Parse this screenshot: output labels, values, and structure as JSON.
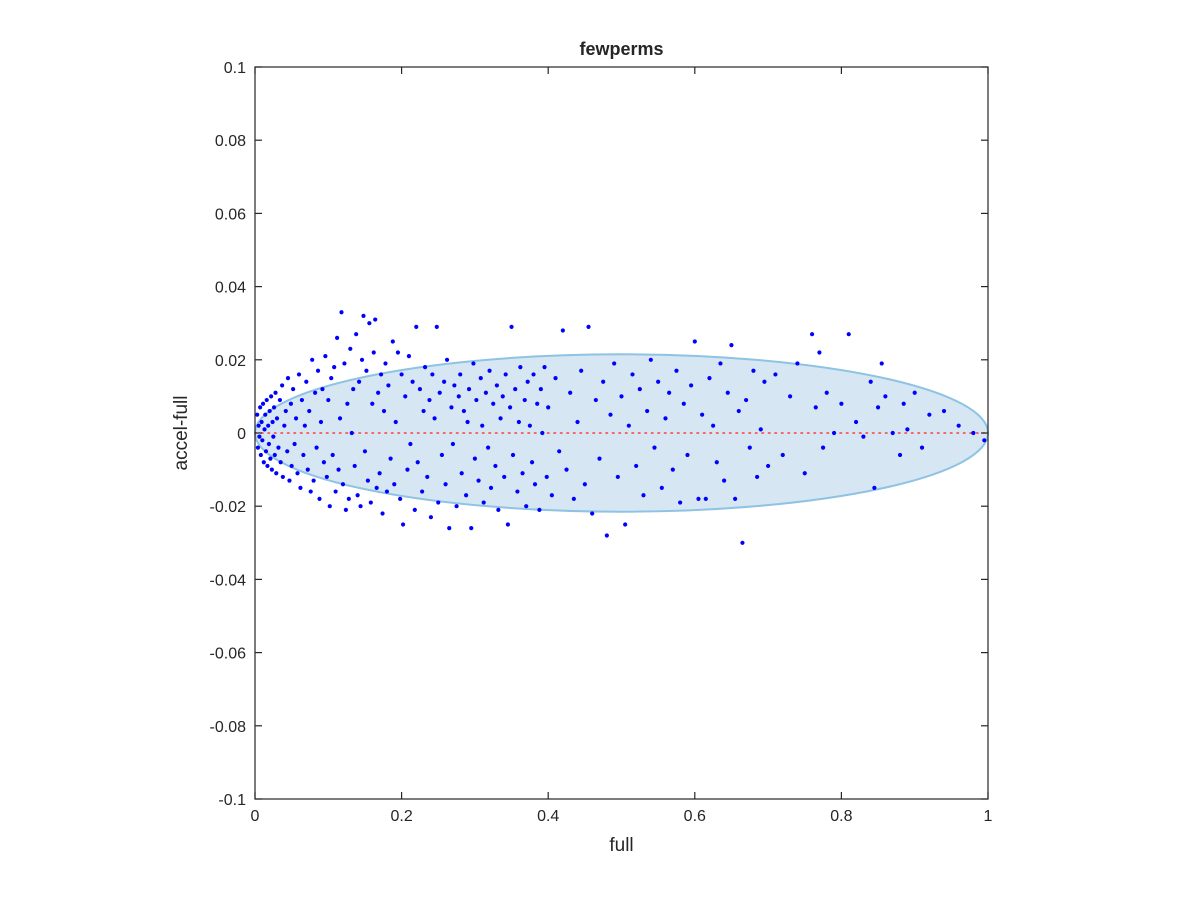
{
  "chart_data": {
    "type": "scatter",
    "title": "fewperms",
    "xlabel": "full",
    "ylabel": "accel-full",
    "xlim": [
      0,
      1
    ],
    "ylim": [
      -0.1,
      0.1
    ],
    "x_ticks": [
      0,
      0.2,
      0.4,
      0.6,
      0.8,
      1
    ],
    "y_ticks": [
      -0.1,
      -0.08,
      -0.06,
      -0.04,
      -0.02,
      0,
      0.02,
      0.04,
      0.06,
      0.08,
      0.1
    ],
    "x_tick_labels": [
      "0",
      "0.2",
      "0.4",
      "0.6",
      "0.8",
      "1"
    ],
    "y_tick_labels": [
      "-0.1",
      "-0.08",
      "-0.06",
      "-0.04",
      "-0.02",
      "0",
      "0.02",
      "0.04",
      "0.06",
      "0.08",
      "0.1"
    ],
    "grid": false,
    "ellipse": {
      "center": [
        0.5,
        0
      ],
      "semi_axis_x": 0.5,
      "semi_axis_y": 0.0215,
      "fill": "#d6e6f3",
      "edge": "#8ec3e3"
    },
    "reference_line": {
      "y": 0,
      "x_range": [
        0,
        1
      ],
      "color": "#ff3b3b",
      "style": "dotted"
    },
    "marker_color": "#0000ff",
    "points": [
      [
        0.003,
        0.005
      ],
      [
        0.004,
        -0.004
      ],
      [
        0.005,
        0.002
      ],
      [
        0.006,
        -0.001
      ],
      [
        0.007,
        0.007
      ],
      [
        0.008,
        -0.006
      ],
      [
        0.009,
        0.003
      ],
      [
        0.01,
        -0.002
      ],
      [
        0.011,
        0.008
      ],
      [
        0.012,
        -0.008
      ],
      [
        0.013,
        0.001
      ],
      [
        0.014,
        0.005
      ],
      [
        0.015,
        -0.005
      ],
      [
        0.016,
        0.009
      ],
      [
        0.017,
        -0.009
      ],
      [
        0.018,
        0.002
      ],
      [
        0.019,
        -0.003
      ],
      [
        0.02,
        0.006
      ],
      [
        0.021,
        -0.007
      ],
      [
        0.022,
        0.01
      ],
      [
        0.023,
        -0.01
      ],
      [
        0.024,
        0.003
      ],
      [
        0.025,
        -0.001
      ],
      [
        0.026,
        0.007
      ],
      [
        0.027,
        -0.006
      ],
      [
        0.028,
        0.011
      ],
      [
        0.029,
        -0.011
      ],
      [
        0.03,
        0.004
      ],
      [
        0.032,
        -0.004
      ],
      [
        0.034,
        0.009
      ],
      [
        0.035,
        -0.008
      ],
      [
        0.037,
        0.013
      ],
      [
        0.038,
        -0.012
      ],
      [
        0.04,
        0.002
      ],
      [
        0.042,
        0.006
      ],
      [
        0.044,
        -0.005
      ],
      [
        0.045,
        0.015
      ],
      [
        0.047,
        -0.013
      ],
      [
        0.049,
        0.008
      ],
      [
        0.05,
        -0.009
      ],
      [
        0.052,
        0.012
      ],
      [
        0.054,
        -0.003
      ],
      [
        0.056,
        0.004
      ],
      [
        0.058,
        -0.011
      ],
      [
        0.06,
        0.016
      ],
      [
        0.062,
        -0.015
      ],
      [
        0.064,
        0.009
      ],
      [
        0.066,
        -0.006
      ],
      [
        0.068,
        0.002
      ],
      [
        0.07,
        0.014
      ],
      [
        0.072,
        -0.01
      ],
      [
        0.074,
        0.006
      ],
      [
        0.076,
        -0.016
      ],
      [
        0.078,
        0.02
      ],
      [
        0.08,
        -0.013
      ],
      [
        0.082,
        0.011
      ],
      [
        0.084,
        -0.004
      ],
      [
        0.086,
        0.017
      ],
      [
        0.088,
        -0.018
      ],
      [
        0.09,
        0.003
      ],
      [
        0.092,
        0.012
      ],
      [
        0.094,
        -0.008
      ],
      [
        0.096,
        0.021
      ],
      [
        0.098,
        -0.012
      ],
      [
        0.1,
        0.009
      ],
      [
        0.102,
        -0.02
      ],
      [
        0.104,
        0.015
      ],
      [
        0.106,
        -0.006
      ],
      [
        0.108,
        0.018
      ],
      [
        0.11,
        -0.016
      ],
      [
        0.112,
        0.026
      ],
      [
        0.114,
        -0.01
      ],
      [
        0.116,
        0.004
      ],
      [
        0.118,
        0.033
      ],
      [
        0.12,
        -0.014
      ],
      [
        0.122,
        0.019
      ],
      [
        0.124,
        -0.021
      ],
      [
        0.126,
        0.008
      ],
      [
        0.128,
        -0.018
      ],
      [
        0.13,
        0.023
      ],
      [
        0.132,
        0.0
      ],
      [
        0.134,
        0.012
      ],
      [
        0.136,
        -0.009
      ],
      [
        0.138,
        0.027
      ],
      [
        0.14,
        -0.017
      ],
      [
        0.142,
        0.014
      ],
      [
        0.144,
        -0.02
      ],
      [
        0.146,
        0.02
      ],
      [
        0.148,
        0.032
      ],
      [
        0.15,
        -0.005
      ],
      [
        0.152,
        0.017
      ],
      [
        0.154,
        -0.013
      ],
      [
        0.156,
        0.03
      ],
      [
        0.158,
        -0.019
      ],
      [
        0.16,
        0.008
      ],
      [
        0.162,
        0.022
      ],
      [
        0.164,
        0.031
      ],
      [
        0.166,
        -0.015
      ],
      [
        0.168,
        0.011
      ],
      [
        0.17,
        -0.011
      ],
      [
        0.172,
        0.016
      ],
      [
        0.174,
        -0.022
      ],
      [
        0.176,
        0.006
      ],
      [
        0.178,
        0.019
      ],
      [
        0.18,
        -0.016
      ],
      [
        0.182,
        0.013
      ],
      [
        0.185,
        -0.007
      ],
      [
        0.188,
        0.025
      ],
      [
        0.19,
        -0.014
      ],
      [
        0.192,
        0.003
      ],
      [
        0.195,
        0.022
      ],
      [
        0.198,
        -0.018
      ],
      [
        0.2,
        0.016
      ],
      [
        0.202,
        -0.025
      ],
      [
        0.205,
        0.01
      ],
      [
        0.208,
        -0.01
      ],
      [
        0.21,
        0.021
      ],
      [
        0.212,
        -0.003
      ],
      [
        0.215,
        0.014
      ],
      [
        0.218,
        -0.021
      ],
      [
        0.22,
        0.029
      ],
      [
        0.222,
        -0.008
      ],
      [
        0.225,
        0.012
      ],
      [
        0.228,
        -0.016
      ],
      [
        0.23,
        0.006
      ],
      [
        0.232,
        0.018
      ],
      [
        0.235,
        -0.012
      ],
      [
        0.238,
        0.009
      ],
      [
        0.24,
        -0.023
      ],
      [
        0.242,
        0.016
      ],
      [
        0.245,
        0.004
      ],
      [
        0.248,
        0.029
      ],
      [
        0.25,
        -0.019
      ],
      [
        0.252,
        0.011
      ],
      [
        0.255,
        -0.006
      ],
      [
        0.258,
        0.014
      ],
      [
        0.26,
        -0.014
      ],
      [
        0.262,
        0.02
      ],
      [
        0.265,
        -0.026
      ],
      [
        0.268,
        0.007
      ],
      [
        0.27,
        -0.003
      ],
      [
        0.272,
        0.013
      ],
      [
        0.275,
        -0.02
      ],
      [
        0.278,
        0.01
      ],
      [
        0.28,
        0.016
      ],
      [
        0.282,
        -0.011
      ],
      [
        0.285,
        0.006
      ],
      [
        0.288,
        -0.017
      ],
      [
        0.29,
        0.003
      ],
      [
        0.292,
        0.012
      ],
      [
        0.295,
        -0.026
      ],
      [
        0.298,
        0.019
      ],
      [
        0.3,
        -0.007
      ],
      [
        0.302,
        0.009
      ],
      [
        0.305,
        -0.013
      ],
      [
        0.308,
        0.015
      ],
      [
        0.31,
        0.002
      ],
      [
        0.312,
        -0.019
      ],
      [
        0.315,
        0.011
      ],
      [
        0.318,
        -0.004
      ],
      [
        0.32,
        0.017
      ],
      [
        0.322,
        -0.015
      ],
      [
        0.325,
        0.008
      ],
      [
        0.328,
        -0.009
      ],
      [
        0.33,
        0.013
      ],
      [
        0.332,
        -0.021
      ],
      [
        0.335,
        0.004
      ],
      [
        0.338,
        0.01
      ],
      [
        0.34,
        -0.012
      ],
      [
        0.342,
        0.016
      ],
      [
        0.345,
        -0.025
      ],
      [
        0.348,
        0.007
      ],
      [
        0.35,
        0.029
      ],
      [
        0.352,
        -0.006
      ],
      [
        0.355,
        0.012
      ],
      [
        0.358,
        -0.016
      ],
      [
        0.36,
        0.003
      ],
      [
        0.362,
        0.018
      ],
      [
        0.365,
        -0.011
      ],
      [
        0.368,
        0.009
      ],
      [
        0.37,
        -0.02
      ],
      [
        0.372,
        0.014
      ],
      [
        0.375,
        0.002
      ],
      [
        0.378,
        -0.008
      ],
      [
        0.38,
        0.016
      ],
      [
        0.382,
        -0.014
      ],
      [
        0.385,
        0.008
      ],
      [
        0.388,
        -0.021
      ],
      [
        0.39,
        0.012
      ],
      [
        0.392,
        0.0
      ],
      [
        0.395,
        0.018
      ],
      [
        0.398,
        -0.012
      ],
      [
        0.4,
        0.007
      ],
      [
        0.405,
        -0.017
      ],
      [
        0.41,
        0.015
      ],
      [
        0.415,
        -0.005
      ],
      [
        0.42,
        0.028
      ],
      [
        0.425,
        -0.01
      ],
      [
        0.43,
        0.011
      ],
      [
        0.435,
        -0.018
      ],
      [
        0.44,
        0.003
      ],
      [
        0.445,
        0.017
      ],
      [
        0.45,
        -0.014
      ],
      [
        0.455,
        0.029
      ],
      [
        0.46,
        -0.022
      ],
      [
        0.465,
        0.009
      ],
      [
        0.47,
        -0.007
      ],
      [
        0.475,
        0.014
      ],
      [
        0.48,
        -0.028
      ],
      [
        0.485,
        0.005
      ],
      [
        0.49,
        0.019
      ],
      [
        0.495,
        -0.012
      ],
      [
        0.5,
        0.01
      ],
      [
        0.505,
        -0.025
      ],
      [
        0.51,
        0.002
      ],
      [
        0.515,
        0.016
      ],
      [
        0.52,
        -0.009
      ],
      [
        0.525,
        0.012
      ],
      [
        0.53,
        -0.017
      ],
      [
        0.535,
        0.006
      ],
      [
        0.54,
        0.02
      ],
      [
        0.545,
        -0.004
      ],
      [
        0.55,
        0.014
      ],
      [
        0.555,
        -0.015
      ],
      [
        0.56,
        0.004
      ],
      [
        0.565,
        0.011
      ],
      [
        0.57,
        -0.01
      ],
      [
        0.575,
        0.017
      ],
      [
        0.58,
        -0.019
      ],
      [
        0.585,
        0.008
      ],
      [
        0.59,
        -0.006
      ],
      [
        0.595,
        0.013
      ],
      [
        0.6,
        0.025
      ],
      [
        0.605,
        -0.018
      ],
      [
        0.61,
        0.005
      ],
      [
        0.615,
        -0.018
      ],
      [
        0.62,
        0.015
      ],
      [
        0.625,
        0.002
      ],
      [
        0.63,
        -0.008
      ],
      [
        0.635,
        0.019
      ],
      [
        0.64,
        -0.013
      ],
      [
        0.645,
        0.011
      ],
      [
        0.65,
        0.024
      ],
      [
        0.655,
        -0.018
      ],
      [
        0.66,
        0.006
      ],
      [
        0.665,
        -0.03
      ],
      [
        0.67,
        0.009
      ],
      [
        0.675,
        -0.004
      ],
      [
        0.68,
        0.017
      ],
      [
        0.685,
        -0.012
      ],
      [
        0.69,
        0.001
      ],
      [
        0.695,
        0.014
      ],
      [
        0.7,
        -0.009
      ],
      [
        0.71,
        0.016
      ],
      [
        0.72,
        -0.006
      ],
      [
        0.73,
        0.01
      ],
      [
        0.74,
        0.019
      ],
      [
        0.75,
        -0.011
      ],
      [
        0.76,
        0.027
      ],
      [
        0.765,
        0.007
      ],
      [
        0.77,
        0.022
      ],
      [
        0.775,
        -0.004
      ],
      [
        0.78,
        0.011
      ],
      [
        0.79,
        0.0
      ],
      [
        0.8,
        0.008
      ],
      [
        0.81,
        0.027
      ],
      [
        0.82,
        0.003
      ],
      [
        0.83,
        -0.001
      ],
      [
        0.84,
        0.014
      ],
      [
        0.845,
        -0.015
      ],
      [
        0.85,
        0.007
      ],
      [
        0.855,
        0.019
      ],
      [
        0.86,
        0.01
      ],
      [
        0.87,
        0.0
      ],
      [
        0.88,
        -0.006
      ],
      [
        0.885,
        0.008
      ],
      [
        0.89,
        0.001
      ],
      [
        0.9,
        0.011
      ],
      [
        0.91,
        -0.004
      ],
      [
        0.92,
        0.005
      ],
      [
        0.94,
        0.006
      ],
      [
        0.96,
        0.002
      ],
      [
        0.98,
        0.0
      ],
      [
        0.995,
        -0.002
      ]
    ]
  }
}
